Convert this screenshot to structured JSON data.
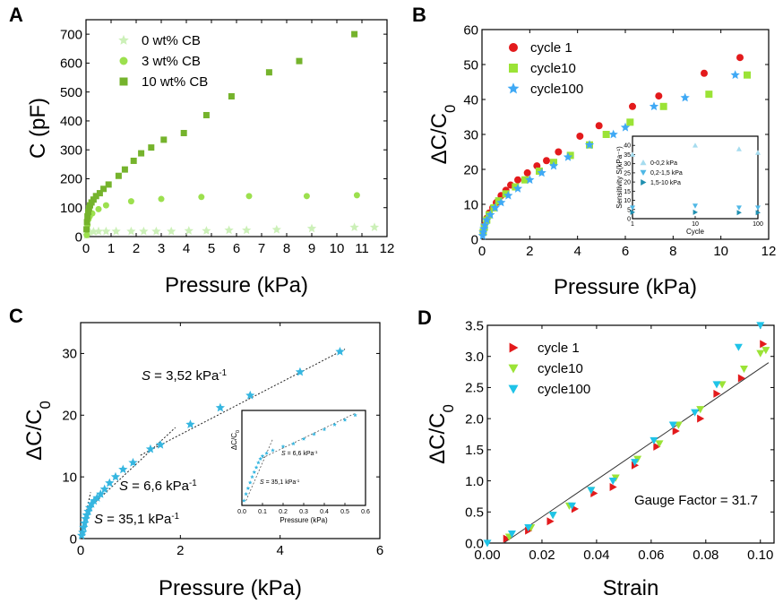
{
  "chart_data": [
    {
      "panel": "A",
      "type": "scatter",
      "xlabel": "Pressure (kPa)",
      "ylabel": "C (pF)",
      "xlim": [
        0,
        12
      ],
      "ylim": [
        0,
        750
      ],
      "xticks": [
        "0",
        "1",
        "2",
        "3",
        "4",
        "5",
        "6",
        "7",
        "8",
        "9",
        "10",
        "11",
        "12"
      ],
      "yticks": [
        "0",
        "100",
        "200",
        "300",
        "400",
        "500",
        "600",
        "700"
      ],
      "legend_position": "top-left",
      "series": [
        {
          "name": "0  wt% CB",
          "color": "#ccf0b8",
          "marker": "star",
          "points": [
            [
              0.03,
              5
            ],
            [
              0.08,
              15
            ],
            [
              0.15,
              17
            ],
            [
              0.3,
              17
            ],
            [
              0.5,
              18
            ],
            [
              0.8,
              18
            ],
            [
              1.2,
              18
            ],
            [
              1.8,
              18
            ],
            [
              2.3,
              18
            ],
            [
              2.8,
              18
            ],
            [
              3.4,
              18
            ],
            [
              4.1,
              20
            ],
            [
              4.8,
              20
            ],
            [
              5.7,
              22
            ],
            [
              6.4,
              22
            ],
            [
              7.6,
              24
            ],
            [
              9.0,
              28
            ],
            [
              10.7,
              32
            ],
            [
              11.5,
              32
            ]
          ]
        },
        {
          "name": "3  wt% CB",
          "color": "#9ce04e",
          "marker": "circle",
          "points": [
            [
              0.03,
              5
            ],
            [
              0.06,
              40
            ],
            [
              0.1,
              60
            ],
            [
              0.15,
              70
            ],
            [
              0.25,
              80
            ],
            [
              0.5,
              95
            ],
            [
              0.8,
              108
            ],
            [
              1.8,
              122
            ],
            [
              3.0,
              130
            ],
            [
              4.6,
              137
            ],
            [
              6.5,
              140
            ],
            [
              8.8,
              140
            ],
            [
              10.8,
              143
            ]
          ]
        },
        {
          "name": "10 wt% CB",
          "color": "#75b32c",
          "marker": "square",
          "points": [
            [
              0.02,
              25
            ],
            [
              0.04,
              50
            ],
            [
              0.06,
              70
            ],
            [
              0.09,
              85
            ],
            [
              0.12,
              98
            ],
            [
              0.16,
              108
            ],
            [
              0.22,
              118
            ],
            [
              0.3,
              128
            ],
            [
              0.4,
              140
            ],
            [
              0.55,
              150
            ],
            [
              0.7,
              165
            ],
            [
              0.9,
              180
            ],
            [
              1.3,
              210
            ],
            [
              1.55,
              232
            ],
            [
              1.9,
              262
            ],
            [
              2.2,
              288
            ],
            [
              2.6,
              308
            ],
            [
              3.1,
              335
            ],
            [
              3.9,
              358
            ],
            [
              4.8,
              420
            ],
            [
              5.8,
              485
            ],
            [
              7.3,
              568
            ],
            [
              8.5,
              607
            ],
            [
              10.7,
              700
            ]
          ]
        }
      ]
    },
    {
      "panel": "B",
      "type": "scatter",
      "xlabel": "Pressure (kPa)",
      "ylabel": "ΔC/C",
      "ylabel_sub": "0",
      "xlim": [
        0,
        12
      ],
      "ylim": [
        0,
        60
      ],
      "xticks": [
        "0",
        "2",
        "4",
        "6",
        "8",
        "10",
        "12"
      ],
      "yticks": [
        "0",
        "10",
        "20",
        "30",
        "40",
        "50",
        "60"
      ],
      "legend_position": "top-left",
      "series": [
        {
          "name": "cycle 1",
          "color": "#e31a1c",
          "marker": "circle",
          "points": [
            [
              0.05,
              2
            ],
            [
              0.1,
              4
            ],
            [
              0.2,
              6
            ],
            [
              0.3,
              7.5
            ],
            [
              0.45,
              9
            ],
            [
              0.6,
              10.5
            ],
            [
              0.8,
              12.5
            ],
            [
              1.0,
              14
            ],
            [
              1.2,
              15.5
            ],
            [
              1.5,
              17
            ],
            [
              1.9,
              19
            ],
            [
              2.3,
              21
            ],
            [
              2.7,
              22.5
            ],
            [
              3.2,
              25
            ],
            [
              4.1,
              29.5
            ],
            [
              4.9,
              32.5
            ],
            [
              6.3,
              38
            ],
            [
              7.4,
              41
            ],
            [
              9.3,
              47.5
            ],
            [
              10.8,
              52
            ]
          ]
        },
        {
          "name": "cycle10",
          "color": "#9be336",
          "marker": "square",
          "points": [
            [
              0.05,
              2
            ],
            [
              0.1,
              3.5
            ],
            [
              0.2,
              5.5
            ],
            [
              0.3,
              7
            ],
            [
              0.5,
              9
            ],
            [
              0.7,
              11
            ],
            [
              1.0,
              13
            ],
            [
              1.4,
              15
            ],
            [
              1.8,
              17
            ],
            [
              2.4,
              19.5
            ],
            [
              3.0,
              22
            ],
            [
              3.7,
              24
            ],
            [
              4.5,
              27
            ],
            [
              5.2,
              30
            ],
            [
              6.2,
              33.5
            ],
            [
              7.6,
              38
            ],
            [
              9.5,
              41.5
            ],
            [
              11.1,
              47
            ]
          ]
        },
        {
          "name": "cycle100",
          "color": "#3fa9f5",
          "marker": "star",
          "points": [
            [
              0.03,
              1
            ],
            [
              0.05,
              2
            ],
            [
              0.08,
              3
            ],
            [
              0.12,
              4
            ],
            [
              0.2,
              5.5
            ],
            [
              0.35,
              7
            ],
            [
              0.55,
              9
            ],
            [
              0.8,
              10.5
            ],
            [
              1.1,
              12.5
            ],
            [
              1.5,
              14.5
            ],
            [
              2.0,
              17
            ],
            [
              2.5,
              19
            ],
            [
              3.0,
              21
            ],
            [
              3.6,
              23.5
            ],
            [
              4.5,
              27
            ],
            [
              5.5,
              30
            ],
            [
              6.0,
              32
            ],
            [
              7.2,
              38
            ],
            [
              8.5,
              40.5
            ],
            [
              10.6,
              47
            ]
          ]
        }
      ],
      "inset": {
        "type": "scatter",
        "xlabel": "Cycle",
        "ylabel": "Sensitivity S(kPa⁻¹)",
        "xscale": "log",
        "xlim": [
          1,
          100
        ],
        "ylim": [
          0,
          45
        ],
        "xticks": [
          "1",
          "10",
          "100"
        ],
        "yticks": [
          "0",
          "5",
          "10",
          "15",
          "20",
          "25",
          "30",
          "35",
          "40"
        ],
        "series": [
          {
            "name": "0-0,2 kPa",
            "color": "#a6dcef",
            "marker": "triangle-up",
            "points": [
              [
                1,
                35
              ],
              [
                10,
                40
              ],
              [
                50,
                38
              ],
              [
                100,
                36
              ]
            ]
          },
          {
            "name": "0,2-1,5 kPa",
            "color": "#4fb8e6",
            "marker": "triangle-down",
            "points": [
              [
                1,
                6
              ],
              [
                10,
                7
              ],
              [
                50,
                6
              ],
              [
                100,
                6
              ]
            ]
          },
          {
            "name": "1,5-10 kPa",
            "color": "#1f8fb0",
            "marker": "triangle-right",
            "points": [
              [
                1,
                3.5
              ],
              [
                10,
                3.5
              ],
              [
                50,
                3.3
              ],
              [
                100,
                3.3
              ]
            ]
          }
        ]
      }
    },
    {
      "panel": "C",
      "type": "scatter",
      "xlabel": "Pressure (kPa)",
      "ylabel": "ΔC/C",
      "ylabel_sub": "0",
      "xlim": [
        0,
        6
      ],
      "ylim": [
        0,
        35
      ],
      "xticks": [
        "0",
        "2",
        "4",
        "6"
      ],
      "yticks": [
        "0",
        "10",
        "20",
        "30"
      ],
      "series": [
        {
          "name": "",
          "color": "#36b6e0",
          "marker": "star",
          "points": [
            [
              0.02,
              0.5
            ],
            [
              0.04,
              1
            ],
            [
              0.06,
              1.8
            ],
            [
              0.08,
              2.5
            ],
            [
              0.1,
              3.2
            ],
            [
              0.12,
              3.8
            ],
            [
              0.15,
              4.4
            ],
            [
              0.18,
              5
            ],
            [
              0.22,
              5.6
            ],
            [
              0.27,
              6.1
            ],
            [
              0.33,
              6.6
            ],
            [
              0.4,
              7.2
            ],
            [
              0.48,
              8
            ],
            [
              0.58,
              9
            ],
            [
              0.7,
              10
            ],
            [
              0.85,
              11.2
            ],
            [
              1.05,
              12.3
            ],
            [
              1.4,
              14.5
            ],
            [
              1.6,
              15.2
            ],
            [
              2.2,
              18.5
            ],
            [
              2.8,
              21.2
            ],
            [
              3.4,
              23.2
            ],
            [
              4.4,
              27
            ],
            [
              5.2,
              30.3
            ]
          ]
        }
      ],
      "annotations": [
        {
          "text": "S = 3,52 kPa",
          "sup": "-1"
        },
        {
          "text": "S = 6,6 kPa",
          "sup": "-1"
        },
        {
          "text": "S = 35,1 kPa",
          "sup": "-1"
        }
      ],
      "inset": {
        "xlabel": "Pressure (kPa)",
        "ylabel": "ΔC/C",
        "ylabel_sub": "0",
        "xlim": [
          0,
          0.6
        ],
        "ylim": [
          0,
          10
        ],
        "xticks": [
          "0.0",
          "0.1",
          "0.2",
          "0.3",
          "0.4",
          "0.5",
          "0.6"
        ],
        "annotations": [
          {
            "text": "S = 6,6 kPa",
            "sup": "-1"
          },
          {
            "text": "S = 35,1 kPa",
            "sup": "-1"
          }
        ],
        "points": [
          [
            0.01,
            0.5
          ],
          [
            0.02,
            1.2
          ],
          [
            0.03,
            1.8
          ],
          [
            0.04,
            2.4
          ],
          [
            0.05,
            3
          ],
          [
            0.06,
            3.5
          ],
          [
            0.07,
            4
          ],
          [
            0.08,
            4.5
          ],
          [
            0.09,
            4.9
          ],
          [
            0.1,
            5.2
          ],
          [
            0.12,
            5.5
          ],
          [
            0.15,
            5.8
          ],
          [
            0.2,
            6.2
          ],
          [
            0.25,
            6.5
          ],
          [
            0.3,
            7
          ],
          [
            0.35,
            7.5
          ],
          [
            0.4,
            8
          ],
          [
            0.45,
            8.5
          ],
          [
            0.5,
            9
          ],
          [
            0.55,
            9.5
          ]
        ]
      }
    },
    {
      "panel": "D",
      "type": "scatter",
      "xlabel": "Strain",
      "ylabel": "ΔC/C",
      "ylabel_sub": "0",
      "xlim": [
        0,
        0.105
      ],
      "ylim": [
        0,
        3.5
      ],
      "xticks": [
        "0.00",
        "0.02",
        "0.04",
        "0.06",
        "0.08",
        "0.10"
      ],
      "yticks": [
        "0.0",
        "0.5",
        "1.0",
        "1.5",
        "2.0",
        "2.5",
        "3.0",
        "3.5"
      ],
      "legend_position": "top-left",
      "annotation": "Gauge Factor = 31.7",
      "series": [
        {
          "name": "cycle 1",
          "color": "#e31a1c",
          "marker": "triangle-right",
          "points": [
            [
              0.007,
              0.07
            ],
            [
              0.015,
              0.2
            ],
            [
              0.023,
              0.35
            ],
            [
              0.032,
              0.55
            ],
            [
              0.039,
              0.8
            ],
            [
              0.046,
              0.9
            ],
            [
              0.054,
              1.25
            ],
            [
              0.062,
              1.55
            ],
            [
              0.069,
              1.8
            ],
            [
              0.078,
              2.0
            ],
            [
              0.084,
              2.4
            ],
            [
              0.093,
              2.65
            ],
            [
              0.101,
              3.2
            ]
          ]
        },
        {
          "name": "cycle10",
          "color": "#9be336",
          "marker": "triangle-down",
          "points": [
            [
              0.008,
              0.1
            ],
            [
              0.016,
              0.25
            ],
            [
              0.024,
              0.45
            ],
            [
              0.03,
              0.6
            ],
            [
              0.038,
              0.85
            ],
            [
              0.047,
              1.05
            ],
            [
              0.055,
              1.35
            ],
            [
              0.063,
              1.6
            ],
            [
              0.07,
              1.9
            ],
            [
              0.078,
              2.15
            ],
            [
              0.086,
              2.55
            ],
            [
              0.094,
              2.8
            ],
            [
              0.1,
              3.05
            ],
            [
              0.102,
              3.1
            ]
          ]
        },
        {
          "name": "cycle100",
          "color": "#1fc3e8",
          "marker": "triangle-down",
          "points": [
            [
              0.0,
              0.0
            ],
            [
              0.009,
              0.15
            ],
            [
              0.015,
              0.25
            ],
            [
              0.024,
              0.45
            ],
            [
              0.031,
              0.6
            ],
            [
              0.038,
              0.85
            ],
            [
              0.046,
              1.0
            ],
            [
              0.054,
              1.3
            ],
            [
              0.061,
              1.65
            ],
            [
              0.068,
              1.9
            ],
            [
              0.076,
              2.1
            ],
            [
              0.084,
              2.55
            ],
            [
              0.092,
              3.15
            ],
            [
              0.1,
              3.5
            ]
          ]
        }
      ],
      "fit_line": {
        "points": [
          [
            0.006,
            0.0
          ],
          [
            0.103,
            2.9
          ]
        ]
      }
    }
  ]
}
